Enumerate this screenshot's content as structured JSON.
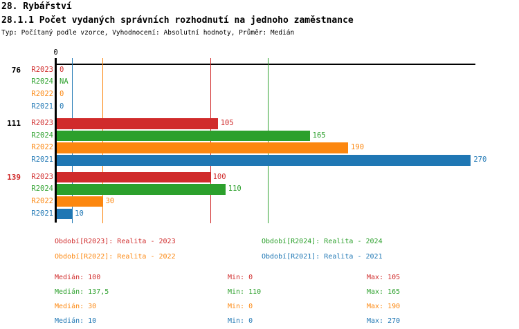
{
  "title": "28. Rybářství",
  "subtitle": "28.1.1 Počet vydaných správních rozhodnutí na jednoho zaměstnance",
  "meta": "Typ: Počítaný podle vzorce, Vyhodnocení: Absolutní hodnoty, Průměr: Medián",
  "colors": {
    "R2023": "#d02b2b",
    "R2024": "#2ca02c",
    "R2022": "#fc870f",
    "R2021": "#1f77b4",
    "axis": "#000000",
    "group_label_default": "#000000",
    "group_label_highlight": "#d02b2b"
  },
  "chart_data": {
    "type": "bar",
    "orientation": "horizontal",
    "x_axis": {
      "start_tick_label": "0",
      "min": 0,
      "max": 273,
      "grid": false
    },
    "series_legend_position": "bottom",
    "groups": [
      {
        "label": "76",
        "label_highlight": false,
        "bars": [
          {
            "series": "R2023",
            "value": 0,
            "display": "0"
          },
          {
            "series": "R2024",
            "value": null,
            "display": "NA"
          },
          {
            "series": "R2022",
            "value": 0,
            "display": "0"
          },
          {
            "series": "R2021",
            "value": 0,
            "display": "0"
          }
        ]
      },
      {
        "label": "111",
        "label_highlight": false,
        "bars": [
          {
            "series": "R2023",
            "value": 105,
            "display": "105"
          },
          {
            "series": "R2024",
            "value": 165,
            "display": "165"
          },
          {
            "series": "R2022",
            "value": 190,
            "display": "190"
          },
          {
            "series": "R2021",
            "value": 270,
            "display": "270"
          }
        ]
      },
      {
        "label": "139",
        "label_highlight": true,
        "bars": [
          {
            "series": "R2023",
            "value": 100,
            "display": "100"
          },
          {
            "series": "R2024",
            "value": 110,
            "display": "110"
          },
          {
            "series": "R2022",
            "value": 30,
            "display": "30"
          },
          {
            "series": "R2021",
            "value": 10,
            "display": "10"
          }
        ]
      }
    ],
    "median_lines": [
      {
        "series": "R2023",
        "value": 100
      },
      {
        "series": "R2024",
        "value": 137.5
      },
      {
        "series": "R2022",
        "value": 30
      },
      {
        "series": "R2021",
        "value": 10
      }
    ]
  },
  "legend": [
    {
      "series": "R2023",
      "label": "Období[R2023]: Realita - 2023"
    },
    {
      "series": "R2024",
      "label": "Období[R2024]: Realita - 2024"
    },
    {
      "series": "R2022",
      "label": "Období[R2022]: Realita - 2022"
    },
    {
      "series": "R2021",
      "label": "Období[R2021]: Realita - 2021"
    }
  ],
  "stats": [
    {
      "series": "R2023",
      "cells": [
        "Medián: 100",
        "Min: 0",
        "Max: 105"
      ]
    },
    {
      "series": "R2024",
      "cells": [
        "Medián: 137,5",
        "Min: 110",
        "Max: 165"
      ]
    },
    {
      "series": "R2022",
      "cells": [
        "Medián: 30",
        "Min: 0",
        "Max: 190"
      ]
    },
    {
      "series": "R2021",
      "cells": [
        "Medián: 10",
        "Min: 0",
        "Max: 270"
      ]
    }
  ]
}
